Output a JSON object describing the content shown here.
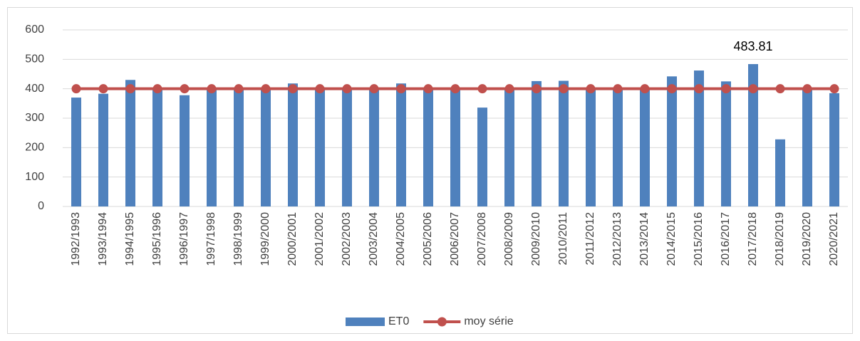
{
  "chart_data": {
    "type": "bar",
    "categories": [
      "1992/1993",
      "1993/1994",
      "1994/1995",
      "1995/1996",
      "1996/1997",
      "1997/1998",
      "1998/1999",
      "1999/2000",
      "2000/2001",
      "2001/2002",
      "2002/2003",
      "2003/2004",
      "2004/2005",
      "2005/2006",
      "2006/2007",
      "2007/2008",
      "2008/2009",
      "2009/2010",
      "2010/2011",
      "2011/2012",
      "2012/2013",
      "2013/2014",
      "2014/2015",
      "2015/2016",
      "2016/2017",
      "2017/2018",
      "2018/2019",
      "2019/2020",
      "2020/2021"
    ],
    "series": [
      {
        "name": "ET0",
        "type": "bar",
        "color": "#4f81bd",
        "values": [
          370,
          383,
          430,
          402,
          378,
          400,
          398,
          400,
          418,
          405,
          398,
          400,
          418,
          400,
          398,
          336,
          402,
          426,
          427,
          402,
          398,
          400,
          442,
          462,
          425,
          483.81,
          228,
          400,
          385
        ],
        "value_labels": [
          null,
          null,
          null,
          null,
          null,
          null,
          null,
          null,
          null,
          null,
          null,
          null,
          null,
          null,
          null,
          null,
          null,
          null,
          null,
          null,
          null,
          null,
          null,
          null,
          null,
          "483.81",
          null,
          null,
          null
        ]
      },
      {
        "name": "moy série",
        "type": "line",
        "color": "#c0504d",
        "values": [
          400,
          400,
          400,
          400,
          400,
          400,
          400,
          400,
          400,
          400,
          400,
          400,
          400,
          400,
          400,
          400,
          400,
          400,
          400,
          400,
          400,
          400,
          400,
          400,
          400,
          400,
          400,
          400,
          400
        ]
      }
    ],
    "ylim": [
      0,
      600
    ],
    "yticks": [
      0,
      100,
      200,
      300,
      400,
      500,
      600
    ],
    "grid": true,
    "legend": "bottom"
  }
}
